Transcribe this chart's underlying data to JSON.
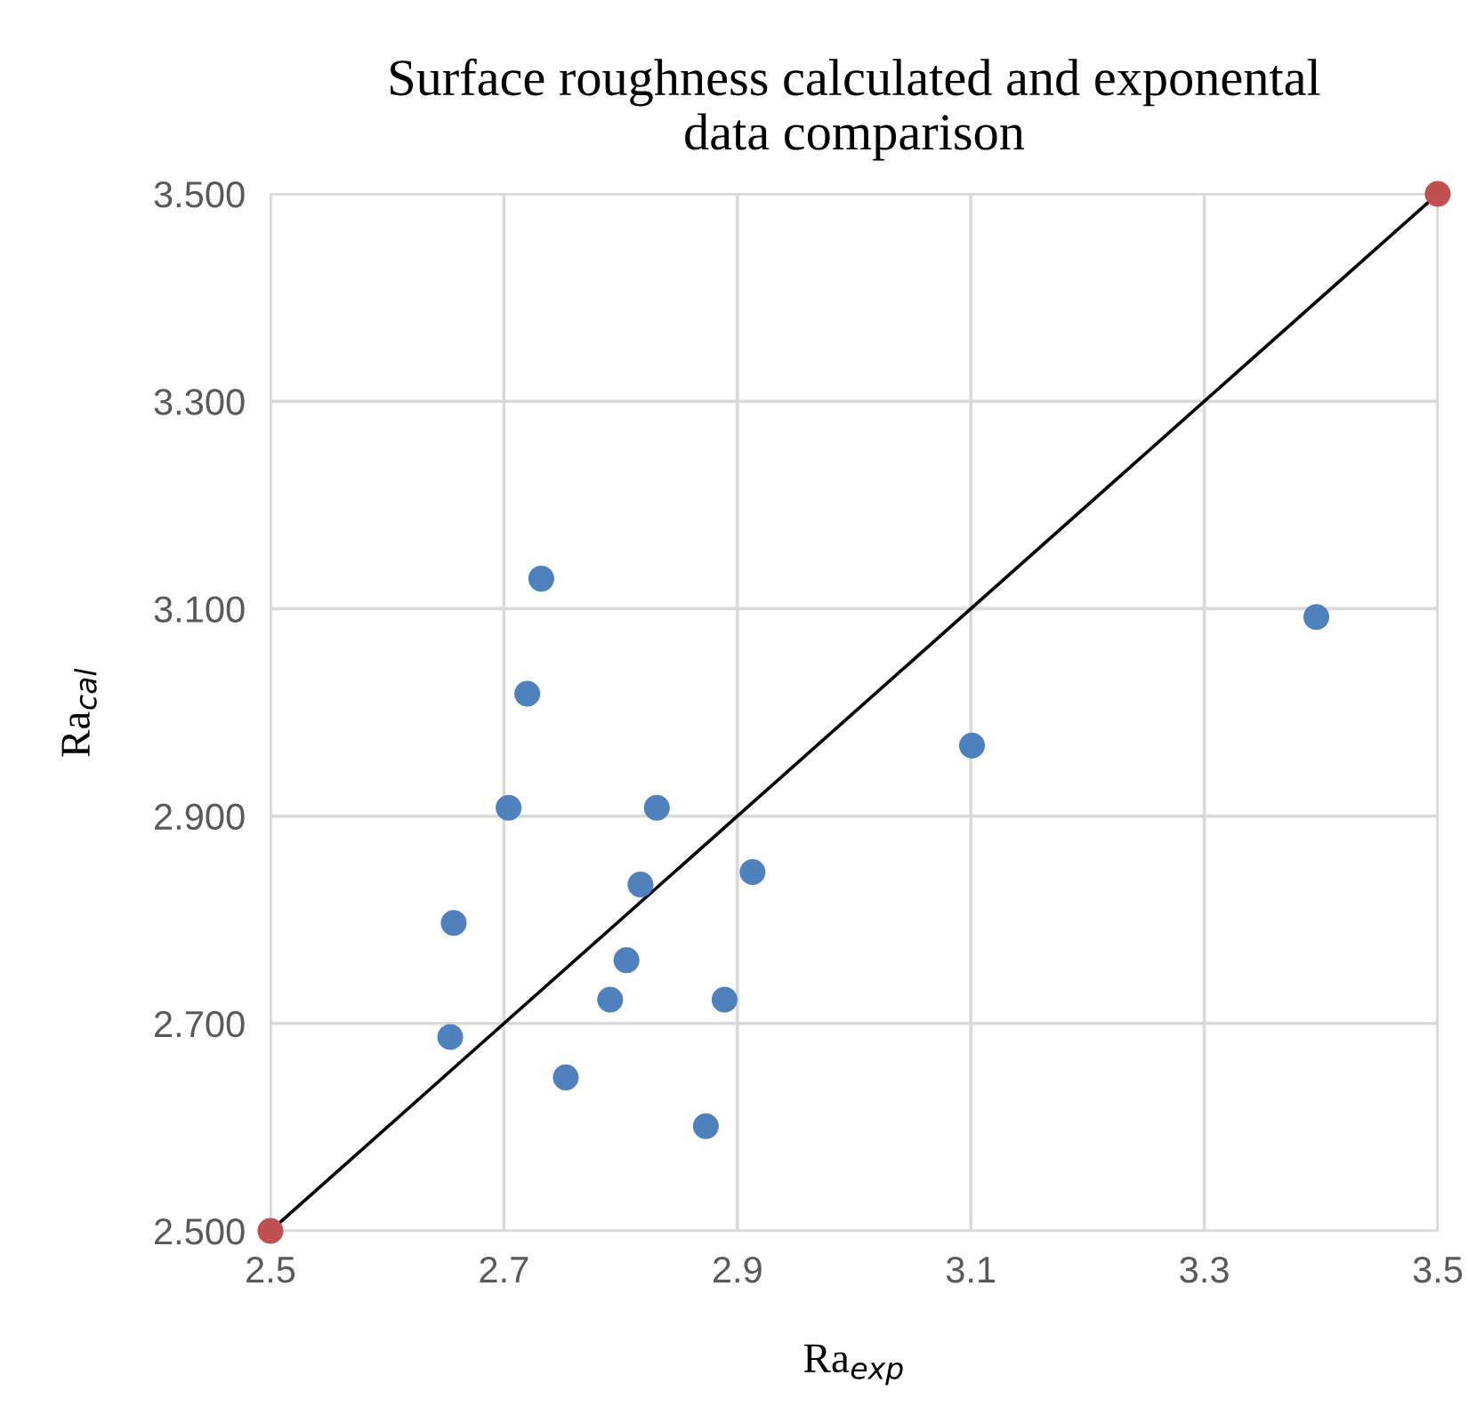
{
  "chart_data": {
    "type": "scatter",
    "title": "Surface roughness calculated and exponental\ndata comparison",
    "xlabel": "Ra$_{exp}$",
    "ylabel": "Ra$_{cal}$",
    "xlim": [
      2.5,
      3.5
    ],
    "xticks": [
      2.5,
      2.7,
      2.9,
      3.1,
      3.3,
      3.5
    ],
    "ylim": [
      2.5,
      3.5
    ],
    "yticks": [
      {
        "value": 2.5,
        "label": "2.500"
      },
      {
        "value": 2.7,
        "label": "2.700"
      },
      {
        "value": 2.9,
        "label": "2.900"
      },
      {
        "value": 3.1,
        "label": "3.100"
      },
      {
        "value": 3.3,
        "label": "3.300"
      },
      {
        "value": 3.5,
        "label": "3.500"
      }
    ],
    "grid": true,
    "series": [
      {
        "type": "line",
        "color": "#000000",
        "x": [
          2.5,
          3.5
        ],
        "values": [
          2.5,
          3.5
        ]
      },
      {
        "type": "scatter",
        "marker": "circle",
        "color": "#4f81bd",
        "x": [
          2.732,
          2.72,
          2.704,
          2.831,
          2.657,
          2.817,
          2.913,
          2.805,
          2.791,
          2.889,
          2.654,
          2.753,
          2.873,
          3.101,
          3.396
        ],
        "values": [
          3.129,
          3.018,
          2.908,
          2.908,
          2.797,
          2.834,
          2.846,
          2.761,
          2.723,
          2.723,
          2.687,
          2.648,
          2.601,
          2.968,
          3.092
        ]
      },
      {
        "type": "scatter",
        "marker": "circle",
        "color": "#c0504d",
        "x": [
          2.5,
          3.5
        ],
        "values": [
          2.5,
          3.5
        ]
      }
    ]
  }
}
